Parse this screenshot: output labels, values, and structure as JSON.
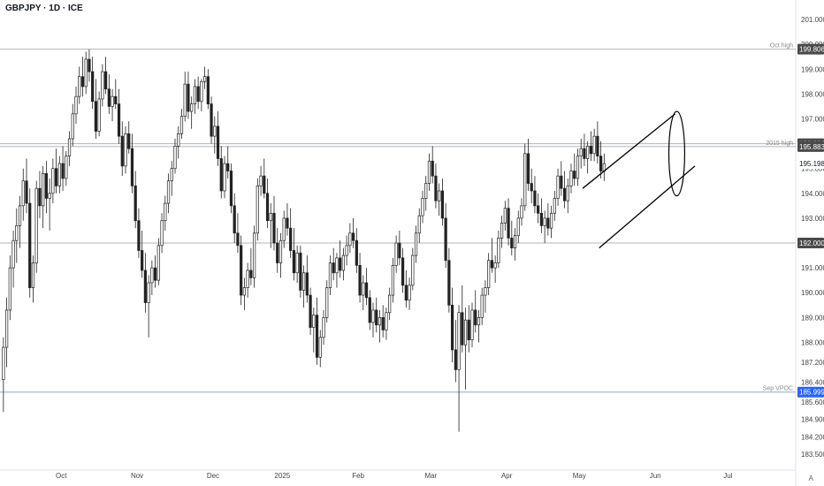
{
  "title": "GBPJPY · 1D · ICE",
  "corner_label": "A",
  "colors": {
    "line_gray": "#b2b5be",
    "line_blue": "#90a4d4",
    "tag_dark": "#4a4a4a",
    "tag_blue": "#2962ff",
    "candle": "#222222"
  },
  "chart_data": {
    "type": "candlestick",
    "title": "GBPJPY · 1D · ICE",
    "ylim": [
      183.0,
      201.5
    ],
    "y_ticks": [
      "201.000",
      "200.000",
      "199.000",
      "198.000",
      "197.000",
      "196.000",
      "195.000",
      "194.000",
      "193.000",
      "192.000",
      "191.000",
      "190.000",
      "189.000",
      "188.000",
      "187.200",
      "186.400",
      "185.600",
      "184.900",
      "184.200",
      "183.500"
    ],
    "y_tick_values": [
      201.0,
      200.0,
      199.0,
      198.0,
      197.0,
      196.0,
      195.0,
      194.0,
      193.0,
      192.0,
      191.0,
      190.0,
      189.0,
      188.0,
      187.2,
      186.4,
      185.6,
      184.9,
      184.2,
      183.5
    ],
    "x_ticks": [
      {
        "label": "Oct",
        "index": 18
      },
      {
        "label": "Nov",
        "index": 41
      },
      {
        "label": "Dec",
        "index": 64
      },
      {
        "label": "2025",
        "index": 85
      },
      {
        "label": "Feb",
        "index": 108
      },
      {
        "label": "Mar",
        "index": 130
      },
      {
        "label": "Apr",
        "index": 153
      },
      {
        "label": "May",
        "index": 175
      },
      {
        "label": "Jun",
        "index": 198
      },
      {
        "label": "Jul",
        "index": 220
      }
    ],
    "x_count": 240,
    "horizontal_lines": [
      {
        "label": "Oct high",
        "value": 199.806,
        "tag": "199.806",
        "style": "gray"
      },
      {
        "label": "",
        "value": 196.0,
        "tag": "196.000",
        "style": "gray"
      },
      {
        "label": "2015 high",
        "value": 195.883,
        "tag": "195.883",
        "style": "gray"
      },
      {
        "label": "",
        "value": 192.0,
        "tag": "192.000",
        "style": "gray"
      },
      {
        "label": "Sep VPOC",
        "value": 185.999,
        "tag": "185.999",
        "style": "blue"
      }
    ],
    "price_tag": {
      "value": 195.198,
      "tag": "195.198"
    },
    "candles": [
      [
        186.5,
        188.2,
        185.2,
        187.8
      ],
      [
        187.8,
        189.8,
        187.0,
        189.3
      ],
      [
        189.3,
        191.5,
        188.9,
        191.0
      ],
      [
        191.0,
        192.5,
        190.2,
        192.1
      ],
      [
        192.1,
        193.4,
        191.2,
        192.7
      ],
      [
        192.7,
        193.9,
        191.8,
        193.5
      ],
      [
        193.5,
        195.0,
        192.9,
        194.5
      ],
      [
        194.5,
        195.4,
        193.2,
        193.6
      ],
      [
        193.6,
        194.2,
        189.8,
        190.2
      ],
      [
        190.2,
        191.5,
        189.6,
        191.2
      ],
      [
        191.2,
        194.5,
        190.8,
        194.2
      ],
      [
        194.2,
        194.9,
        193.0,
        193.5
      ],
      [
        193.5,
        195.1,
        192.6,
        194.8
      ],
      [
        194.8,
        195.3,
        193.2,
        193.8
      ],
      [
        193.8,
        194.6,
        192.5,
        194.0
      ],
      [
        194.0,
        195.4,
        193.6,
        195.0
      ],
      [
        195.0,
        195.8,
        194.0,
        194.3
      ],
      [
        194.3,
        195.5,
        194.0,
        195.2
      ],
      [
        195.2,
        195.9,
        194.1,
        194.6
      ],
      [
        194.6,
        195.7,
        194.3,
        195.5
      ],
      [
        195.5,
        196.5,
        195.1,
        196.2
      ],
      [
        196.2,
        197.6,
        195.9,
        197.2
      ],
      [
        197.2,
        198.3,
        196.8,
        197.9
      ],
      [
        197.9,
        199.1,
        197.6,
        198.7
      ],
      [
        198.7,
        199.5,
        197.9,
        198.3
      ],
      [
        198.3,
        199.7,
        198.0,
        199.4
      ],
      [
        199.4,
        199.8,
        198.5,
        198.9
      ],
      [
        198.9,
        199.5,
        197.4,
        197.7
      ],
      [
        197.7,
        198.6,
        196.2,
        196.5
      ],
      [
        196.5,
        198.1,
        196.3,
        197.8
      ],
      [
        197.8,
        199.2,
        197.5,
        198.9
      ],
      [
        198.9,
        199.5,
        198.0,
        198.2
      ],
      [
        198.2,
        198.8,
        197.2,
        197.5
      ],
      [
        197.5,
        198.2,
        196.9,
        197.9
      ],
      [
        197.9,
        198.6,
        197.4,
        197.6
      ],
      [
        197.6,
        198.2,
        196.0,
        196.3
      ],
      [
        196.3,
        196.9,
        194.7,
        195.1
      ],
      [
        195.1,
        196.7,
        194.8,
        196.4
      ],
      [
        196.4,
        196.9,
        195.6,
        195.8
      ],
      [
        195.8,
        196.4,
        194.0,
        194.3
      ],
      [
        194.3,
        194.9,
        192.6,
        192.9
      ],
      [
        192.9,
        193.4,
        191.4,
        191.7
      ],
      [
        191.7,
        192.5,
        190.6,
        190.9
      ],
      [
        190.9,
        191.6,
        189.2,
        189.6
      ],
      [
        189.6,
        190.7,
        188.2,
        190.4
      ],
      [
        190.4,
        191.3,
        189.9,
        191.0
      ],
      [
        191.0,
        191.5,
        190.2,
        190.5
      ],
      [
        190.5,
        192.2,
        190.3,
        191.9
      ],
      [
        191.9,
        193.2,
        191.6,
        192.9
      ],
      [
        192.9,
        193.9,
        192.5,
        193.6
      ],
      [
        193.6,
        194.8,
        193.2,
        194.5
      ],
      [
        194.5,
        195.3,
        193.9,
        195.0
      ],
      [
        195.0,
        196.2,
        194.8,
        195.9
      ],
      [
        195.9,
        196.7,
        195.4,
        196.4
      ],
      [
        196.4,
        197.4,
        196.2,
        197.1
      ],
      [
        197.1,
        198.9,
        196.9,
        198.4
      ],
      [
        198.4,
        198.9,
        197.0,
        197.3
      ],
      [
        197.3,
        197.9,
        196.6,
        197.6
      ],
      [
        197.6,
        198.6,
        197.2,
        198.3
      ],
      [
        198.3,
        198.7,
        197.4,
        197.7
      ],
      [
        197.7,
        198.6,
        197.3,
        198.5
      ],
      [
        198.5,
        199.1,
        198.2,
        198.7
      ],
      [
        198.7,
        199.0,
        197.4,
        197.6
      ],
      [
        197.6,
        197.9,
        196.0,
        196.3
      ],
      [
        196.3,
        197.1,
        195.6,
        196.7
      ],
      [
        196.7,
        197.3,
        195.1,
        195.4
      ],
      [
        195.4,
        195.9,
        193.8,
        194.1
      ],
      [
        194.1,
        195.5,
        193.8,
        195.2
      ],
      [
        195.2,
        195.9,
        194.6,
        194.9
      ],
      [
        194.9,
        195.2,
        193.2,
        193.5
      ],
      [
        193.5,
        194.0,
        192.0,
        192.4
      ],
      [
        192.4,
        193.2,
        191.6,
        191.9
      ],
      [
        191.9,
        192.3,
        189.5,
        189.9
      ],
      [
        189.9,
        190.6,
        189.3,
        190.2
      ],
      [
        190.2,
        191.2,
        189.8,
        190.9
      ],
      [
        190.9,
        191.8,
        190.3,
        190.6
      ],
      [
        190.6,
        192.7,
        190.2,
        192.4
      ],
      [
        192.4,
        194.6,
        192.1,
        194.3
      ],
      [
        194.3,
        195.1,
        193.9,
        194.7
      ],
      [
        194.7,
        195.4,
        193.8,
        194.0
      ],
      [
        194.0,
        194.6,
        192.6,
        192.9
      ],
      [
        192.9,
        193.6,
        191.8,
        193.2
      ],
      [
        193.2,
        193.9,
        191.7,
        192.0
      ],
      [
        192.0,
        192.6,
        190.8,
        191.2
      ],
      [
        191.2,
        192.4,
        190.6,
        192.1
      ],
      [
        192.1,
        193.3,
        191.8,
        193.0
      ],
      [
        193.0,
        193.6,
        192.3,
        192.6
      ],
      [
        192.6,
        193.4,
        191.4,
        191.7
      ],
      [
        191.7,
        192.6,
        190.5,
        190.8
      ],
      [
        190.8,
        191.9,
        190.4,
        191.6
      ],
      [
        191.6,
        191.9,
        189.8,
        190.1
      ],
      [
        190.1,
        191.1,
        189.4,
        190.8
      ],
      [
        190.8,
        191.5,
        189.6,
        189.9
      ],
      [
        189.9,
        190.2,
        188.3,
        188.6
      ],
      [
        188.6,
        189.4,
        187.6,
        189.1
      ],
      [
        189.1,
        189.8,
        187.1,
        187.4
      ],
      [
        187.4,
        188.5,
        187.0,
        188.2
      ],
      [
        188.2,
        189.3,
        187.9,
        189.0
      ],
      [
        189.0,
        190.5,
        188.8,
        190.2
      ],
      [
        190.2,
        191.5,
        189.9,
        191.2
      ],
      [
        191.2,
        191.8,
        190.5,
        190.8
      ],
      [
        190.8,
        191.6,
        190.2,
        191.4
      ],
      [
        191.4,
        192.1,
        190.6,
        190.9
      ],
      [
        190.9,
        191.8,
        190.5,
        191.5
      ],
      [
        191.5,
        192.3,
        191.1,
        191.9
      ],
      [
        191.9,
        192.8,
        191.6,
        192.4
      ],
      [
        192.4,
        193.0,
        191.8,
        192.1
      ],
      [
        192.1,
        192.6,
        190.8,
        191.1
      ],
      [
        191.1,
        191.6,
        189.6,
        189.9
      ],
      [
        189.9,
        190.7,
        189.3,
        190.4
      ],
      [
        190.4,
        191.0,
        189.5,
        189.8
      ],
      [
        189.8,
        190.1,
        188.5,
        188.8
      ],
      [
        188.8,
        189.6,
        188.2,
        189.3
      ],
      [
        189.3,
        189.8,
        188.4,
        188.7
      ],
      [
        188.7,
        189.3,
        188.0,
        189.0
      ],
      [
        189.0,
        189.5,
        188.2,
        188.5
      ],
      [
        188.5,
        189.4,
        188.1,
        189.2
      ],
      [
        189.2,
        190.2,
        188.9,
        189.9
      ],
      [
        189.9,
        191.4,
        189.6,
        191.1
      ],
      [
        191.1,
        192.3,
        190.8,
        192.0
      ],
      [
        192.0,
        192.5,
        191.1,
        191.4
      ],
      [
        191.4,
        191.8,
        190.0,
        190.3
      ],
      [
        190.3,
        190.9,
        189.4,
        189.7
      ],
      [
        189.7,
        190.6,
        189.3,
        190.3
      ],
      [
        190.3,
        191.8,
        190.1,
        191.5
      ],
      [
        191.5,
        192.7,
        191.2,
        192.4
      ],
      [
        192.4,
        193.4,
        192.0,
        193.1
      ],
      [
        193.1,
        194.1,
        192.8,
        193.8
      ],
      [
        193.8,
        194.7,
        193.3,
        194.4
      ],
      [
        194.4,
        195.6,
        194.1,
        195.3
      ],
      [
        195.3,
        195.9,
        194.4,
        194.7
      ],
      [
        194.7,
        195.2,
        193.4,
        193.7
      ],
      [
        193.7,
        194.4,
        193.1,
        194.1
      ],
      [
        194.1,
        194.6,
        192.7,
        193.0
      ],
      [
        193.0,
        193.6,
        191.0,
        191.3
      ],
      [
        191.3,
        191.8,
        189.2,
        189.5
      ],
      [
        189.5,
        190.2,
        187.2,
        187.7
      ],
      [
        187.7,
        188.9,
        186.4,
        186.9
      ],
      [
        186.9,
        189.5,
        184.4,
        189.2
      ],
      [
        189.2,
        190.3,
        187.6,
        187.9
      ],
      [
        187.9,
        189.4,
        186.1,
        188.9
      ],
      [
        188.9,
        189.5,
        187.6,
        188.1
      ],
      [
        188.1,
        189.6,
        187.8,
        189.3
      ],
      [
        189.3,
        190.1,
        188.4,
        188.7
      ],
      [
        188.7,
        189.3,
        188.0,
        189.0
      ],
      [
        189.0,
        190.2,
        188.7,
        189.9
      ],
      [
        189.9,
        190.5,
        189.2,
        190.2
      ],
      [
        190.2,
        191.6,
        189.9,
        191.3
      ],
      [
        191.3,
        192.2,
        190.8,
        191.0
      ],
      [
        191.0,
        191.5,
        190.4,
        191.2
      ],
      [
        191.2,
        192.5,
        191.0,
        192.2
      ],
      [
        192.2,
        193.1,
        191.8,
        192.8
      ],
      [
        192.8,
        193.7,
        192.5,
        193.4
      ],
      [
        193.4,
        193.8,
        191.9,
        192.2
      ],
      [
        192.2,
        192.9,
        191.5,
        191.8
      ],
      [
        191.8,
        192.6,
        191.3,
        192.3
      ],
      [
        192.3,
        193.3,
        192.0,
        193.0
      ],
      [
        193.0,
        193.8,
        192.7,
        193.5
      ],
      [
        193.5,
        196.0,
        193.3,
        195.6
      ],
      [
        195.6,
        196.2,
        194.1,
        194.4
      ],
      [
        194.4,
        195.0,
        193.6,
        194.1
      ],
      [
        194.1,
        194.7,
        193.2,
        193.5
      ],
      [
        193.5,
        194.0,
        192.8,
        193.2
      ],
      [
        193.2,
        193.8,
        192.4,
        192.7
      ],
      [
        192.7,
        193.3,
        192.0,
        193.0
      ],
      [
        193.0,
        193.6,
        192.3,
        192.6
      ],
      [
        192.6,
        193.5,
        192.2,
        193.2
      ],
      [
        193.2,
        194.1,
        192.9,
        193.8
      ],
      [
        193.8,
        195.0,
        193.5,
        194.7
      ],
      [
        194.7,
        195.3,
        193.9,
        194.2
      ],
      [
        194.2,
        194.9,
        193.4,
        193.7
      ],
      [
        193.7,
        194.6,
        193.2,
        194.3
      ],
      [
        194.3,
        195.2,
        194.0,
        194.9
      ],
      [
        194.9,
        195.6,
        194.3,
        194.6
      ],
      [
        194.6,
        195.8,
        194.3,
        195.5
      ],
      [
        195.5,
        196.2,
        195.0,
        195.8
      ],
      [
        195.8,
        196.4,
        195.1,
        195.4
      ],
      [
        195.4,
        196.1,
        194.8,
        195.9
      ],
      [
        195.9,
        196.5,
        195.3,
        195.6
      ],
      [
        195.6,
        196.6,
        195.3,
        196.3
      ],
      [
        196.3,
        196.9,
        195.2,
        195.5
      ],
      [
        195.5,
        196.1,
        194.6,
        194.9
      ],
      [
        194.9,
        195.6,
        194.5,
        195.2
      ]
    ],
    "channel_lines": [
      {
        "start": {
          "index": 176,
          "value": 194.2
        },
        "end": {
          "index": 204,
          "value": 197.2
        }
      },
      {
        "start": {
          "index": 181,
          "value": 191.8
        },
        "end": {
          "index": 210,
          "value": 195.1
        }
      }
    ],
    "ellipse": {
      "center": {
        "index": 204,
        "value": 195.6
      },
      "rx_index": 2.4,
      "ry_value": 1.7
    }
  }
}
